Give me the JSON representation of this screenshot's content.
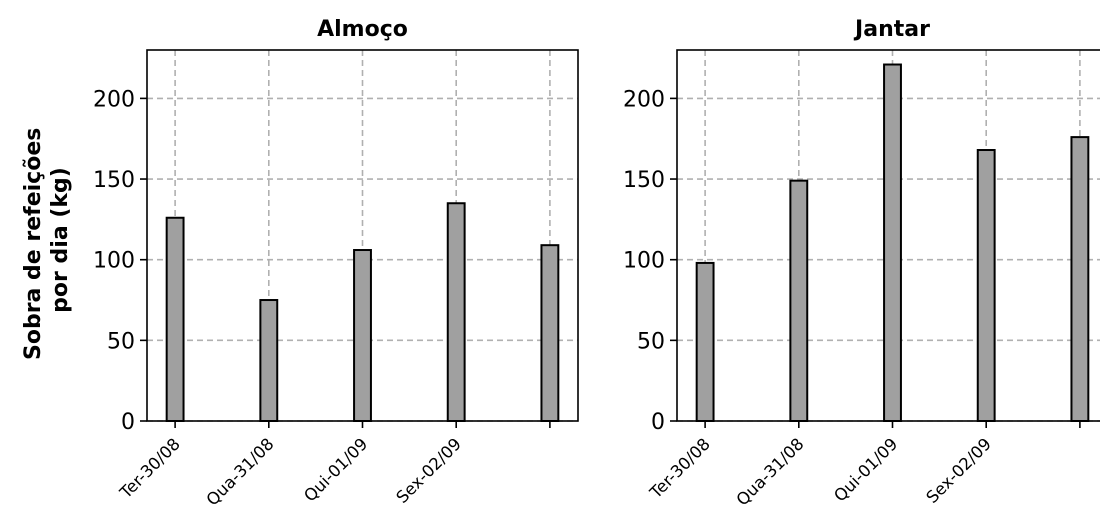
{
  "figure": {
    "ylabel_lines": [
      "Sobra de refeições",
      "por dia (kg)"
    ]
  },
  "chart_data": [
    {
      "type": "bar",
      "title": "Almoço",
      "categories": [
        "Ter-30/08",
        "Qua-31/08",
        "Qui-01/09",
        "Sex-02/09",
        ""
      ],
      "values": [
        126,
        75,
        106,
        135,
        109
      ],
      "ylim": [
        0,
        230
      ],
      "yticks": [
        0,
        50,
        100,
        150,
        200
      ],
      "ylabel": "Sobra de refeições por dia (kg)",
      "xlabel": "",
      "grid": true,
      "bar_color": "#a0a0a0",
      "edge_color": "#000000"
    },
    {
      "type": "bar",
      "title": "Jantar",
      "categories": [
        "Ter-30/08",
        "Qua-31/08",
        "Qui-01/09",
        "Sex-02/09",
        ""
      ],
      "values": [
        98,
        149,
        221,
        168,
        176
      ],
      "ylim": [
        0,
        230
      ],
      "yticks": [
        0,
        50,
        100,
        150,
        200
      ],
      "ylabel": "",
      "xlabel": "",
      "grid": true,
      "bar_color": "#a0a0a0",
      "edge_color": "#000000"
    }
  ]
}
